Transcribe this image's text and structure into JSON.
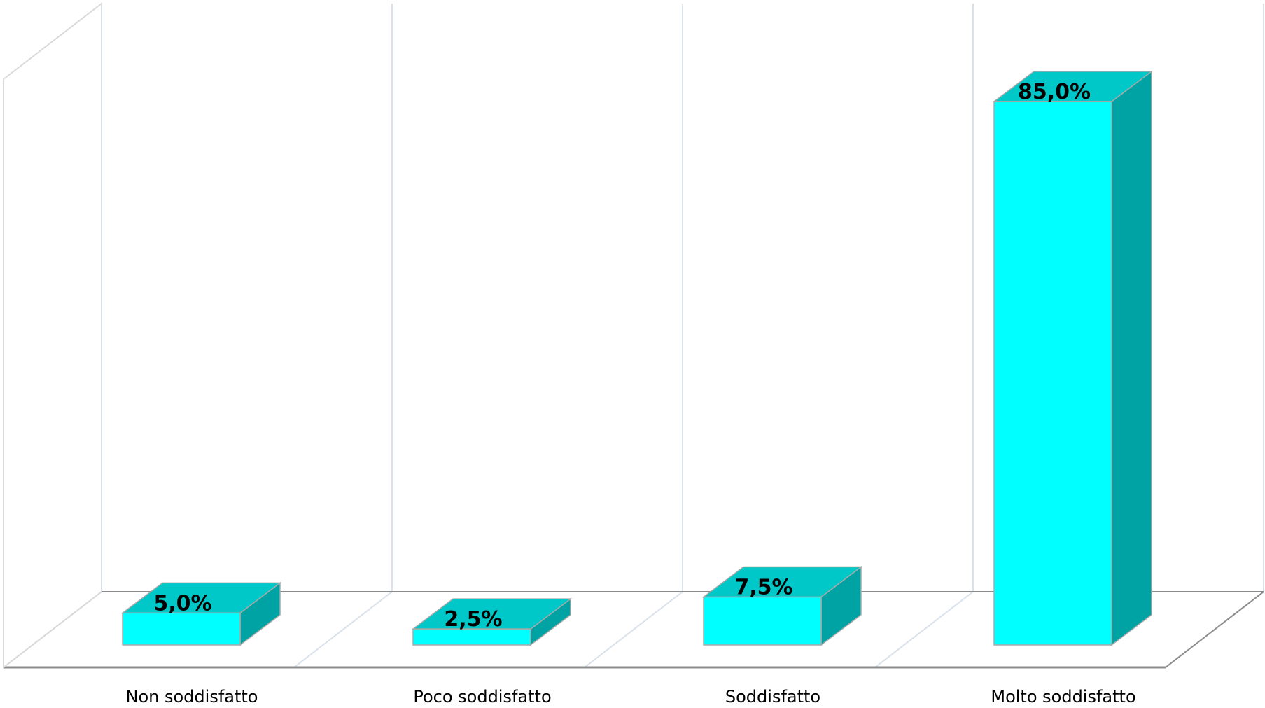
{
  "chart_data": {
    "type": "bar",
    "three_d": true,
    "categories": [
      "Non soddisfatto",
      "Poco soddisfatto",
      "Soddisfatto",
      "Molto soddisfatto"
    ],
    "values": [
      5.0,
      2.5,
      7.5,
      85.0
    ],
    "data_labels": [
      "5,0%",
      "2,5%",
      "7,5%",
      "85,0%"
    ],
    "unit": "%",
    "ylim": [
      0,
      100
    ],
    "grid": true,
    "legend": "none",
    "colors": {
      "bar_front": "#00FFFF",
      "bar_top": "#00C8C8",
      "bar_side": "#00A3A3",
      "bar_edge": "#A8A8A8",
      "gridline": "#D9E1EA",
      "floor_edge": "#8C8C8C",
      "frame": "#D9D9D9"
    }
  }
}
